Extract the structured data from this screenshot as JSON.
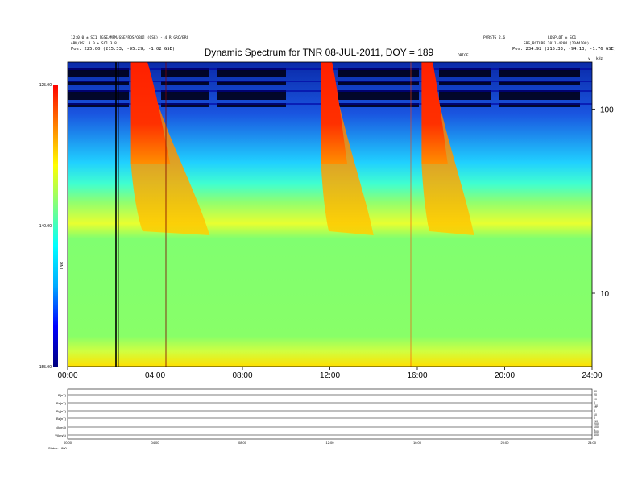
{
  "chart_data": {
    "type": "heatmap",
    "title": "Dynamic Spectrum for TNR 08-JUL-2011, DOY = 189",
    "x": {
      "ticks": [
        "00:00",
        "04:00",
        "08:00",
        "12:00",
        "16:00",
        "20:00",
        "24:00"
      ],
      "tick_hours": [
        0,
        4,
        8,
        12,
        16,
        20,
        24
      ],
      "range": [
        0,
        24
      ]
    },
    "y": {
      "scale": "log",
      "ticks": [
        "100",
        "10"
      ],
      "tick_values": [
        100,
        10
      ],
      "range": [
        4,
        180
      ]
    },
    "colorbar": {
      "label": "TNR",
      "ticks": [
        "-125.00",
        "-140.00",
        "-155.00"
      ],
      "tick_values": [
        -125,
        -140,
        -155
      ],
      "range": [
        -155,
        -125
      ],
      "colors": [
        "#00007f",
        "#0000ff",
        "#00aaff",
        "#00ffff",
        "#7fff7f",
        "#ffff00",
        "#ff7f00",
        "#ff0000"
      ]
    },
    "bursts": [
      {
        "start_hour": 2.9,
        "end_hour": 4.4
      },
      {
        "start_hour": 11.6,
        "end_hour": 12.6
      },
      {
        "start_hour": 16.2,
        "end_hour": 17.2
      }
    ]
  },
  "header_left": {
    "line1": "12:0.0 ± SC1 [GSE/MPM/GSE/ROS/OBO] (GSE) - 4 R GRC/BRC",
    "line2": "ARM/PS1 8.0 ± SC1 3.8",
    "line3": "Pos:     225.00 (215.33, -95.29, -1.02 GSE)"
  },
  "header_right": {
    "line1": "PVRSTG 2.6",
    "line2": "LOSPLOT ± SC1",
    "line3": "SRS_RCTURB  2011-4204 (2044108)",
    "line4": "Pos:     234.92 (215.33, -94.13, -1.76 GSE)"
  },
  "small_labels": {
    "mid": "ORIGE",
    "right": "v",
    "right2": "kHz"
  },
  "bottom_panel": {
    "rows": [
      "B(nT)",
      "Bx(nT)",
      "By(nT)",
      "Bz(nT)",
      "N(cm3)",
      "V(km/s)"
    ],
    "right_scales": [
      [
        "30",
        "20"
      ],
      [
        "10",
        "0",
        "-10"
      ],
      [
        "10",
        "0"
      ],
      [
        "10",
        "0",
        "-10"
      ],
      [
        "200",
        "100",
        "0"
      ],
      [
        "500",
        "400"
      ]
    ],
    "x_ticks": [
      "00:00",
      "04:00",
      "08:00",
      "12:00",
      "16:00",
      "20:00",
      "24:00"
    ],
    "status_label": "Status: ",
    "status_value": "800"
  }
}
